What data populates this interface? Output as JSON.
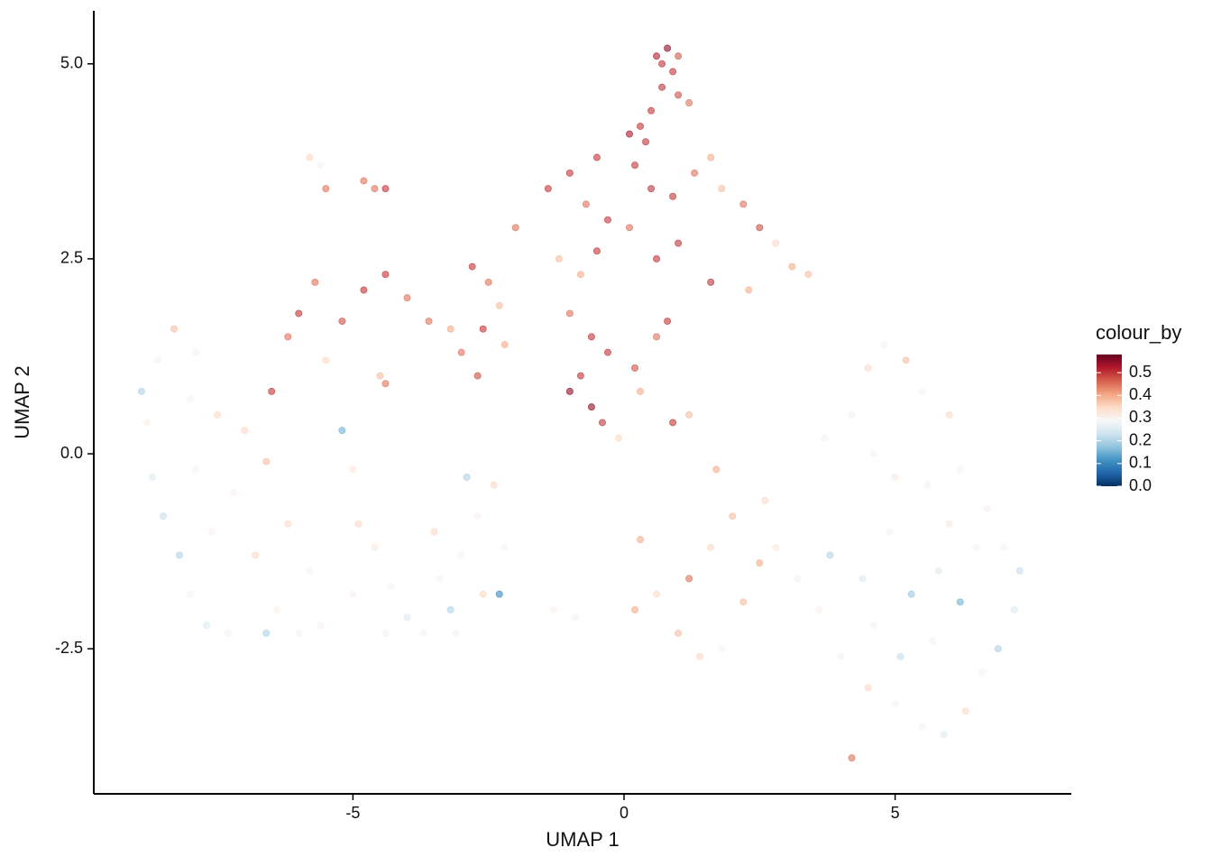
{
  "chart_data": {
    "type": "scatter",
    "x_label": "UMAP 1",
    "y_label": "UMAP 2",
    "legend_title": "colour_by",
    "xlim": [
      -9.78,
      8.25
    ],
    "xticks": [
      -5,
      0,
      5
    ],
    "ylim": [
      -4.36,
      5.68
    ],
    "yticks": [
      {
        "value": -2.5,
        "label": "-2.5"
      },
      {
        "value": 0,
        "label": "0.0"
      },
      {
        "value": 2.5,
        "label": "2.5"
      },
      {
        "value": 5,
        "label": "5.0"
      }
    ],
    "colorlim": [
      0,
      0.58
    ],
    "colorticks": [
      {
        "value": 0,
        "label": "0.0"
      },
      0.1,
      0.2,
      0.3,
      0.4,
      0.5
    ],
    "colorscale": [
      "#053061",
      "#2166ac",
      "#4393c3",
      "#92c5de",
      "#d1e5f0",
      "#f7f7f7",
      "#fddbc7",
      "#f4a582",
      "#d6604d",
      "#b2182b",
      "#67001f"
    ],
    "x": [
      0.6,
      0.8,
      0.9,
      0.7,
      1.0,
      0.5,
      1.2,
      0.3,
      0.1,
      0.7,
      1.0,
      0.4,
      -1.4,
      -1.0,
      -0.5,
      -0.7,
      -0.3,
      0.2,
      0.5,
      0.9,
      1.3,
      1.6,
      1.8,
      2.2,
      2.5,
      2.8,
      3.1,
      3.4,
      0.1,
      -0.5,
      -1.2,
      -2.0,
      1.0,
      1.6,
      2.3,
      0.6,
      -0.8,
      -6.0,
      -5.7,
      -5.2,
      -4.8,
      -4.4,
      -4.0,
      -3.6,
      -3.2,
      -2.8,
      -2.5,
      -2.3,
      -2.6,
      -3.0,
      -6.2,
      -6.5,
      -5.5,
      -4.5,
      -4.4,
      -2.7,
      -2.2,
      -5.8,
      -5.6,
      -5.5,
      -4.8,
      -4.6,
      -4.4,
      -1.0,
      -0.6,
      -0.3,
      -0.8,
      -1.0,
      -0.6,
      -0.4,
      0.2,
      0.6,
      0.8,
      0.3,
      0.9,
      -0.1,
      1.2,
      -8.9,
      -8.8,
      -8.6,
      -8.3,
      -7.9,
      -8.0,
      -7.5,
      -7.0,
      -6.6,
      -8.7,
      -8.5,
      -8.2,
      -8.0,
      -7.7,
      -7.3,
      -7.6,
      -7.2,
      -6.8,
      -6.4,
      -6.0,
      -5.6,
      -6.2,
      -5.8,
      -6.6,
      -7.9,
      -5.0,
      -4.6,
      -4.3,
      -4.0,
      -3.7,
      -3.4,
      -3.0,
      -2.7,
      -2.4,
      -2.2,
      -2.6,
      -3.2,
      -2.9,
      -3.5,
      -4.9,
      -5.2,
      -5.0,
      -3.1,
      -4.4,
      -2.3,
      0.2,
      0.6,
      1.0,
      1.4,
      1.8,
      2.2,
      2.5,
      1.6,
      1.2,
      2.0,
      2.6,
      2.8,
      3.2,
      3.6,
      1.7,
      0.3,
      -1.3,
      -0.9,
      4.5,
      4.8,
      5.2,
      5.5,
      6.0,
      4.2,
      4.6,
      5.0,
      5.6,
      6.2,
      6.7,
      7.0,
      7.3,
      7.2,
      6.9,
      6.6,
      6.3,
      5.9,
      5.5,
      5.0,
      4.5,
      4.2,
      4.0,
      3.8,
      4.4,
      4.9,
      5.3,
      5.8,
      6.2,
      6.5,
      5.7,
      5.1,
      4.6,
      6.0,
      3.7
    ],
    "y": [
      5.1,
      5.2,
      4.9,
      4.7,
      4.6,
      4.4,
      4.5,
      4.2,
      4.1,
      5.0,
      5.1,
      4.0,
      3.4,
      3.6,
      3.8,
      3.2,
      3.0,
      3.7,
      3.4,
      3.3,
      3.6,
      3.8,
      3.4,
      3.2,
      2.9,
      2.7,
      2.4,
      2.3,
      2.9,
      2.6,
      2.5,
      2.9,
      2.7,
      2.2,
      2.1,
      2.5,
      2.3,
      1.8,
      2.2,
      1.7,
      2.1,
      2.3,
      2.0,
      1.7,
      1.6,
      2.4,
      2.2,
      1.9,
      1.6,
      1.3,
      1.5,
      0.8,
      1.2,
      1.0,
      0.9,
      1.0,
      1.4,
      3.8,
      3.7,
      3.4,
      3.5,
      3.4,
      3.4,
      1.8,
      1.5,
      1.3,
      1.0,
      0.8,
      0.6,
      0.4,
      1.1,
      1.5,
      1.7,
      0.8,
      0.4,
      0.2,
      0.5,
      0.8,
      0.4,
      1.2,
      1.6,
      1.3,
      0.7,
      0.5,
      0.3,
      -0.1,
      -0.3,
      -0.8,
      -1.3,
      -1.8,
      -2.2,
      -2.3,
      -1.0,
      -0.5,
      -1.3,
      -2.0,
      -2.3,
      -2.2,
      -0.9,
      -1.5,
      -2.3,
      -0.2,
      -1.8,
      -1.2,
      -1.7,
      -2.1,
      -2.3,
      -1.6,
      -1.3,
      -0.8,
      -0.4,
      -1.2,
      -1.8,
      -2.0,
      -0.3,
      -1.0,
      -0.9,
      0.3,
      -0.2,
      -2.3,
      -2.3,
      -1.8,
      -2.0,
      -1.8,
      -2.3,
      -2.6,
      -2.5,
      -1.9,
      -1.4,
      -1.2,
      -1.6,
      -0.8,
      -0.6,
      -1.2,
      -1.6,
      -2.0,
      -0.2,
      -1.1,
      -2.0,
      -2.1,
      1.1,
      1.4,
      1.2,
      0.8,
      0.5,
      0.5,
      0.0,
      -0.3,
      -0.4,
      -0.2,
      -0.7,
      -1.2,
      -1.5,
      -2.0,
      -2.5,
      -2.8,
      -3.3,
      -3.6,
      -3.5,
      -3.2,
      -3.0,
      -3.9,
      -2.6,
      -1.3,
      -1.6,
      -1.0,
      -1.8,
      -1.5,
      -1.9,
      -1.2,
      -2.4,
      -2.6,
      -2.2,
      -0.9,
      0.2
    ],
    "values": [
      0.52,
      0.55,
      0.5,
      0.5,
      0.48,
      0.5,
      0.45,
      0.5,
      0.53,
      0.5,
      0.47,
      0.5,
      0.5,
      0.5,
      0.5,
      0.45,
      0.5,
      0.5,
      0.5,
      0.5,
      0.45,
      0.4,
      0.38,
      0.45,
      0.48,
      0.35,
      0.4,
      0.38,
      0.45,
      0.5,
      0.38,
      0.45,
      0.5,
      0.5,
      0.4,
      0.5,
      0.4,
      0.5,
      0.45,
      0.48,
      0.5,
      0.5,
      0.45,
      0.45,
      0.4,
      0.5,
      0.45,
      0.38,
      0.5,
      0.45,
      0.45,
      0.5,
      0.35,
      0.38,
      0.45,
      0.48,
      0.4,
      0.35,
      0.3,
      0.45,
      0.45,
      0.45,
      0.5,
      0.45,
      0.5,
      0.5,
      0.5,
      0.55,
      0.55,
      0.5,
      0.48,
      0.45,
      0.5,
      0.4,
      0.5,
      0.35,
      0.38,
      0.2,
      0.3,
      0.3,
      0.38,
      0.3,
      0.3,
      0.35,
      0.35,
      0.38,
      0.25,
      0.22,
      0.2,
      0.3,
      0.25,
      0.3,
      0.3,
      0.3,
      0.35,
      0.3,
      0.3,
      0.3,
      0.35,
      0.3,
      0.2,
      0.28,
      0.3,
      0.32,
      0.3,
      0.25,
      0.3,
      0.3,
      0.3,
      0.3,
      0.35,
      0.3,
      0.35,
      0.2,
      0.2,
      0.35,
      0.35,
      0.15,
      0.32,
      0.28,
      0.3,
      0.1,
      0.4,
      0.35,
      0.38,
      0.35,
      0.3,
      0.38,
      0.4,
      0.35,
      0.45,
      0.38,
      0.35,
      0.32,
      0.3,
      0.3,
      0.4,
      0.4,
      0.3,
      0.3,
      0.35,
      0.3,
      0.38,
      0.3,
      0.35,
      0.3,
      0.3,
      0.32,
      0.3,
      0.3,
      0.3,
      0.28,
      0.22,
      0.25,
      0.2,
      0.28,
      0.35,
      0.25,
      0.3,
      0.3,
      0.35,
      0.45,
      0.3,
      0.2,
      0.25,
      0.3,
      0.18,
      0.25,
      0.15,
      0.3,
      0.28,
      0.22,
      0.3,
      0.32,
      0.3
    ]
  }
}
